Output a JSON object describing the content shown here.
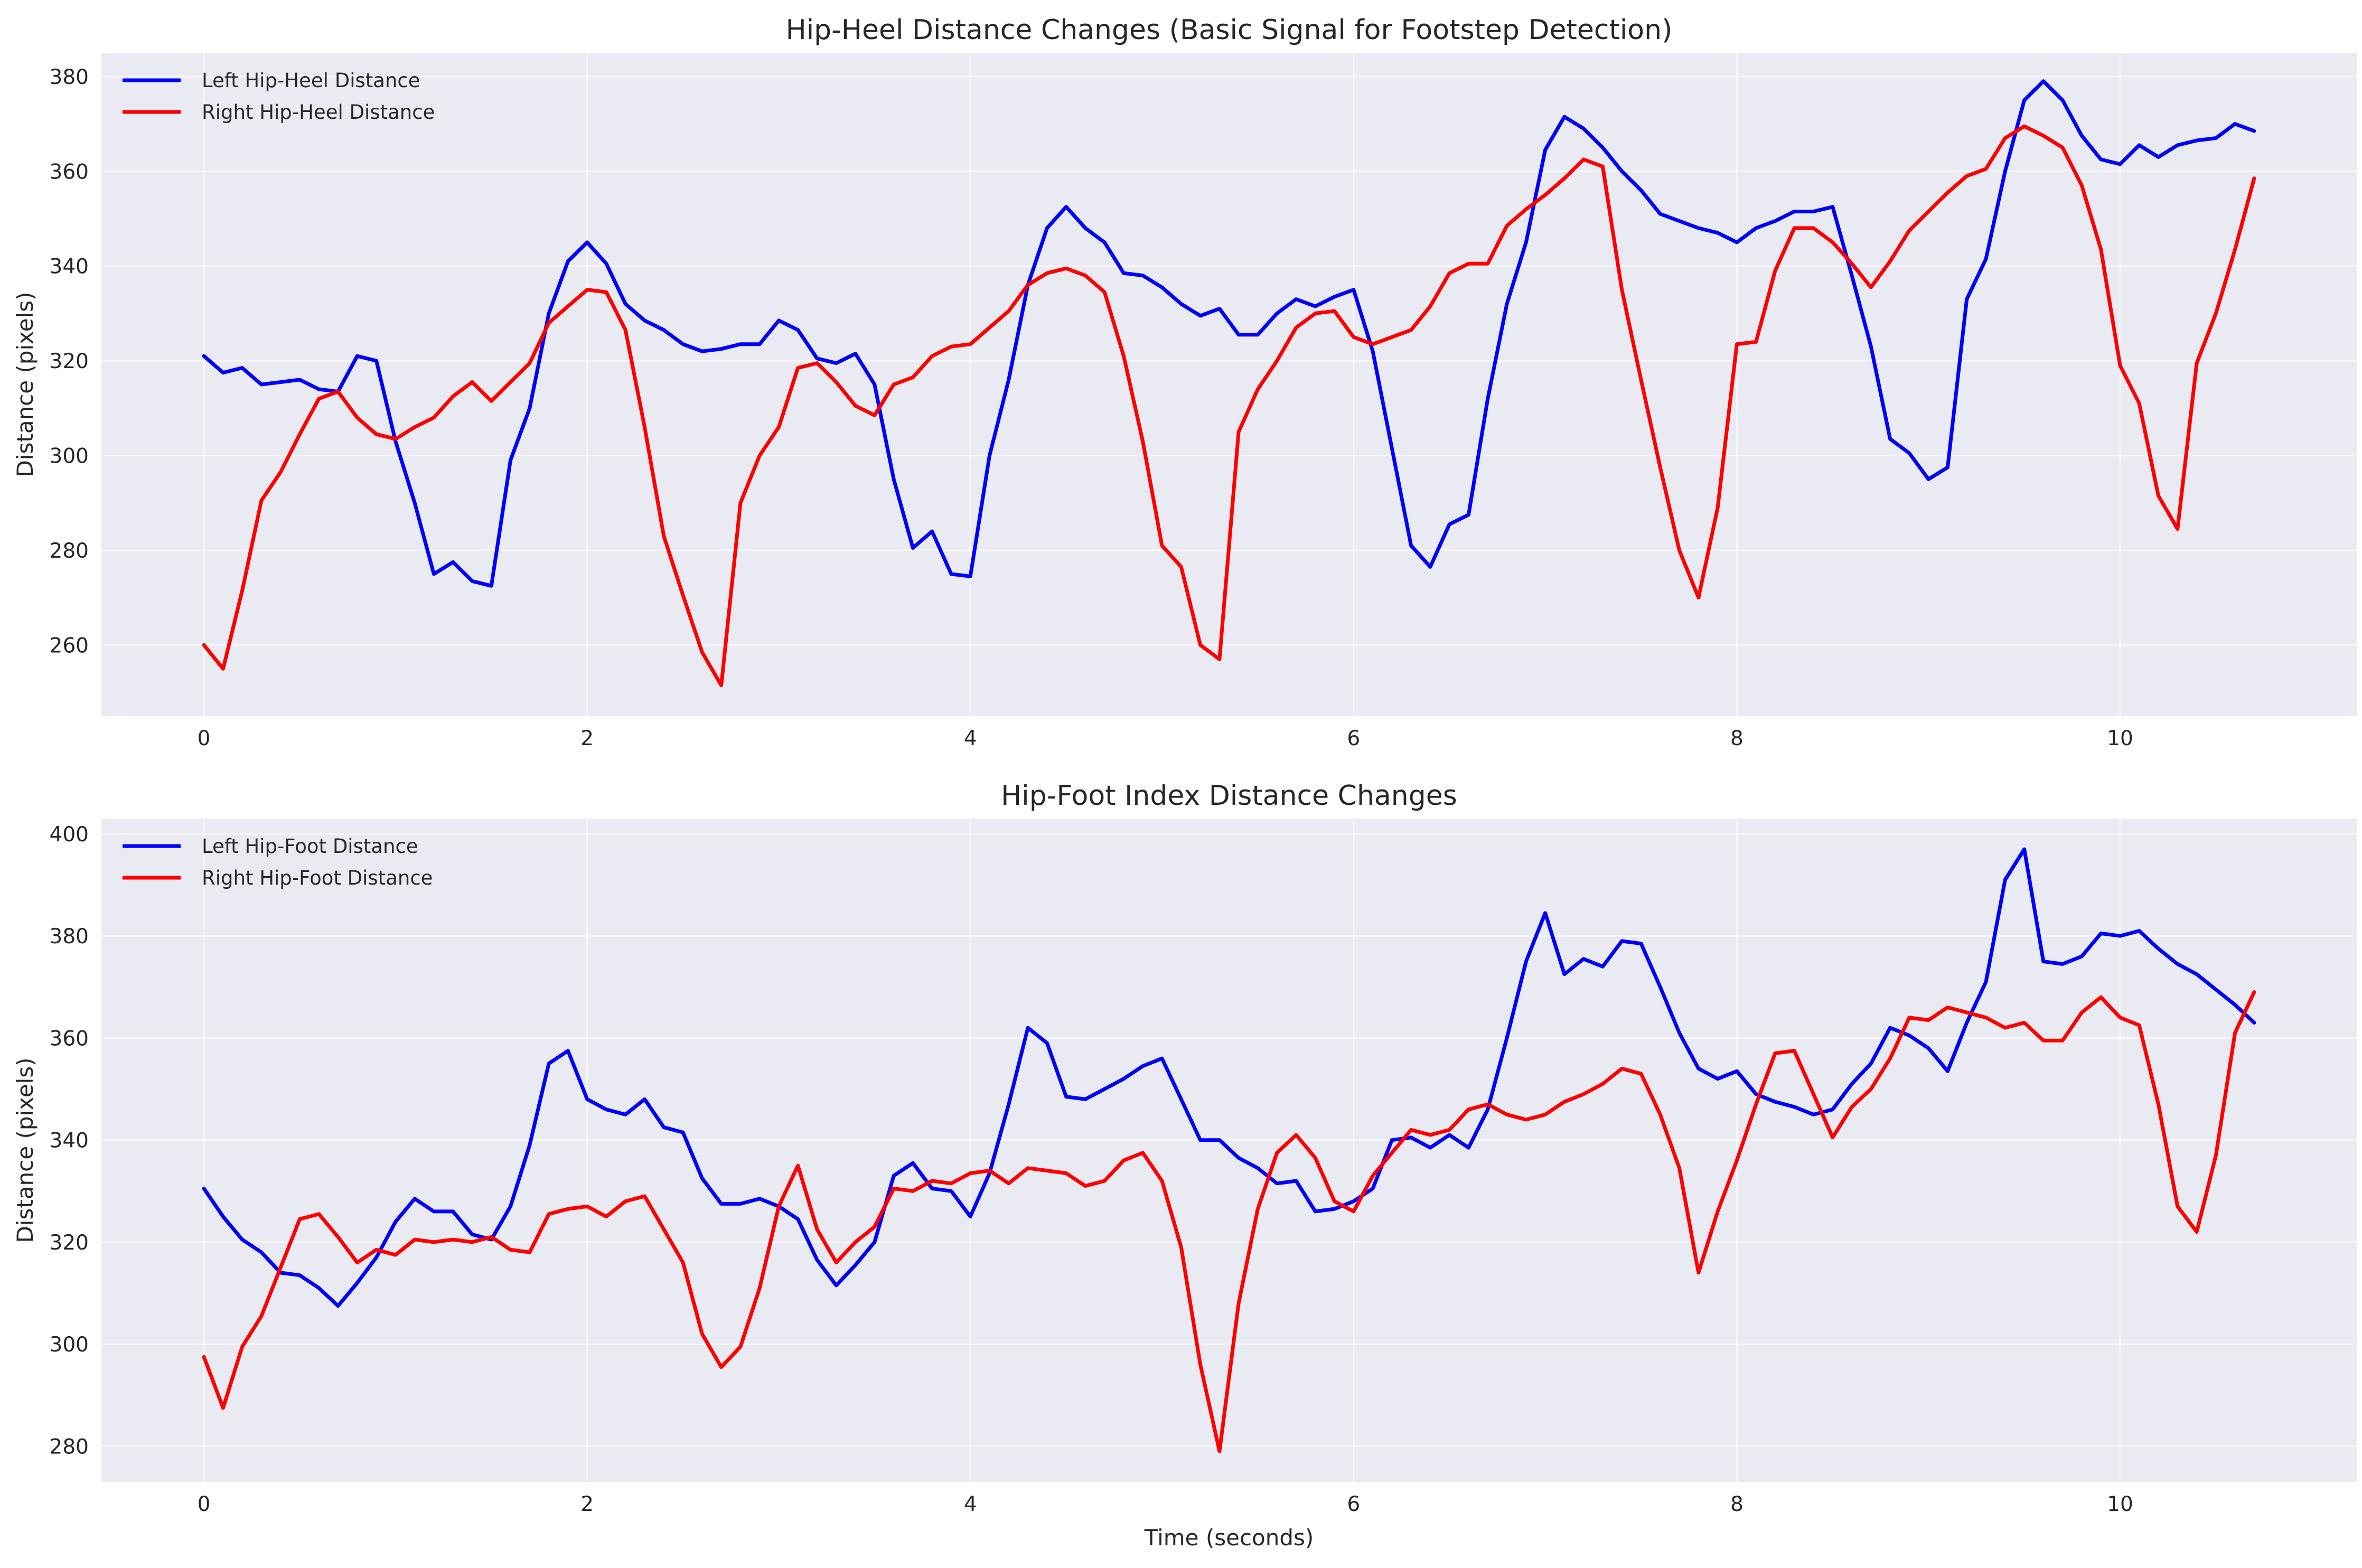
{
  "chart_data": [
    {
      "type": "line",
      "title": "Hip-Heel Distance Changes (Basic Signal for Footstep Detection)",
      "xlabel": "",
      "ylabel": "Distance (pixels)",
      "xlim": [
        -0.535,
        11.235
      ],
      "ylim": [
        245,
        385
      ],
      "xticks": [
        0,
        2,
        4,
        6,
        8,
        10
      ],
      "yticks": [
        260,
        280,
        300,
        320,
        340,
        360,
        380
      ],
      "grid": true,
      "legend": "top-left",
      "x_step": 0.1,
      "series": [
        {
          "name": "Left Hip-Heel Distance",
          "color": "#0000ff",
          "values": [
            321,
            317.5,
            318.5,
            315,
            315.5,
            316,
            314,
            313.5,
            321,
            320,
            303,
            290,
            275,
            277.5,
            273.5,
            272.5,
            299,
            310,
            330,
            341,
            345,
            340.5,
            332,
            328.5,
            326.5,
            323.5,
            322,
            322.5,
            323.5,
            323.5,
            328.5,
            326.5,
            320.5,
            319.5,
            321.5,
            315,
            295,
            280.5,
            284,
            275,
            274.5,
            300,
            316,
            336,
            348,
            352.5,
            348,
            345,
            338.5,
            338,
            335.5,
            332,
            329.5,
            331,
            325.5,
            325.5,
            330,
            333,
            331.5,
            333.5,
            335,
            322,
            301.5,
            281,
            276.5,
            285.5,
            287.5,
            312,
            332,
            345,
            364.5,
            371.5,
            369,
            365,
            360,
            356,
            351,
            349.5,
            348,
            347,
            345,
            348,
            349.5,
            351.5,
            351.5,
            352.5,
            338,
            323,
            303.5,
            300.5,
            295,
            297.5,
            333,
            341.5,
            360,
            375,
            379,
            375,
            367.5,
            362.5,
            361.5,
            365.5,
            363,
            365.5,
            366.5,
            367,
            370,
            368.5
          ]
        },
        {
          "name": "Right Hip-Heel Distance",
          "color": "#ff0000",
          "values": [
            260,
            255,
            271.5,
            290.5,
            296.5,
            304.5,
            312,
            313.5,
            308,
            304.5,
            303.5,
            306,
            308,
            312.5,
            315.5,
            311.5,
            315.5,
            319.5,
            328,
            331.5,
            335,
            334.5,
            326.5,
            306,
            283,
            270.5,
            258.5,
            251.5,
            290,
            300,
            306,
            318.5,
            319.5,
            315.5,
            310.5,
            308.5,
            315,
            316.5,
            321,
            323,
            323.5,
            327,
            330.5,
            336,
            338.5,
            339.5,
            338,
            334.5,
            321,
            303,
            281,
            276.5,
            260,
            257,
            305,
            314,
            320,
            327,
            330,
            330.5,
            325,
            323.5,
            325,
            326.5,
            331.5,
            338.5,
            340.5,
            340.5,
            348.5,
            352,
            355,
            358.5,
            362.5,
            361,
            335,
            316,
            297.5,
            280,
            270,
            289,
            323.5,
            324,
            339,
            348,
            348,
            345,
            340.5,
            335.5,
            341,
            347.5,
            351.5,
            355.5,
            359,
            360.5,
            367,
            369.5,
            367.5,
            365,
            357,
            343.5,
            319,
            311,
            291.5,
            284.5,
            319.5,
            330,
            343.5,
            358.5
          ]
        }
      ]
    },
    {
      "type": "line",
      "title": "Hip-Foot Index Distance Changes",
      "xlabel": "Time (seconds)",
      "ylabel": "Distance (pixels)",
      "xlim": [
        -0.535,
        11.235
      ],
      "ylim": [
        273,
        403
      ],
      "xticks": [
        0,
        2,
        4,
        6,
        8,
        10
      ],
      "yticks": [
        280,
        300,
        320,
        340,
        360,
        380,
        400
      ],
      "grid": true,
      "legend": "top-left",
      "x_step": 0.1,
      "series": [
        {
          "name": "Left Hip-Foot Distance",
          "color": "#0000ff",
          "values": [
            330.5,
            325,
            320.5,
            318,
            314,
            313.5,
            311,
            307.5,
            312,
            317,
            324,
            328.5,
            326,
            326,
            321.5,
            320.5,
            327,
            339,
            355,
            357.5,
            348,
            346,
            345,
            348,
            342.5,
            341.5,
            332.5,
            327.5,
            327.5,
            328.5,
            327,
            324.5,
            316.5,
            311.5,
            315.5,
            320,
            333,
            335.5,
            330.5,
            330,
            325,
            333.5,
            347,
            362,
            359,
            348.5,
            348,
            350,
            352,
            354.5,
            356,
            348,
            340,
            340,
            336.5,
            334.5,
            331.5,
            332,
            326,
            326.5,
            328,
            330.5,
            340,
            340.5,
            338.5,
            341,
            338.5,
            346,
            360,
            375,
            384.5,
            372.5,
            375.5,
            374,
            379,
            378.5,
            370,
            361,
            354,
            352,
            353.5,
            349,
            347.5,
            346.5,
            345,
            346,
            351,
            355,
            362,
            360.5,
            358,
            353.5,
            363,
            371,
            391,
            397,
            375,
            374.5,
            376,
            380.5,
            380,
            381,
            377.5,
            374.5,
            372.5,
            369.5,
            366.5,
            363
          ]
        },
        {
          "name": "Right Hip-Foot Distance",
          "color": "#ff0000",
          "values": [
            297.5,
            287.5,
            299.5,
            305.5,
            315,
            324.5,
            325.5,
            321,
            316,
            318.5,
            317.5,
            320.5,
            320,
            320.5,
            320,
            321,
            318.5,
            318,
            325.5,
            326.5,
            327,
            325,
            328,
            329,
            322.5,
            316,
            302,
            295.5,
            299.5,
            311,
            327,
            335,
            322.5,
            316,
            320,
            323,
            330.5,
            330,
            332,
            331.5,
            333.5,
            334,
            331.5,
            334.5,
            334,
            333.5,
            331,
            332,
            336,
            337.5,
            332,
            319,
            296,
            279,
            308,
            326.5,
            337.5,
            341,
            336.5,
            328,
            326,
            333,
            337.5,
            342,
            341,
            342,
            346,
            347,
            345,
            344,
            345,
            347.5,
            349,
            351,
            354,
            353,
            345,
            334.5,
            314,
            326,
            336,
            347,
            357,
            357.5,
            349,
            340.5,
            346.5,
            350,
            356,
            364,
            363.5,
            366,
            365,
            364,
            362,
            363,
            359.5,
            359.5,
            365,
            368,
            364,
            362.5,
            347,
            327,
            322,
            337,
            361,
            369
          ]
        }
      ]
    }
  ]
}
